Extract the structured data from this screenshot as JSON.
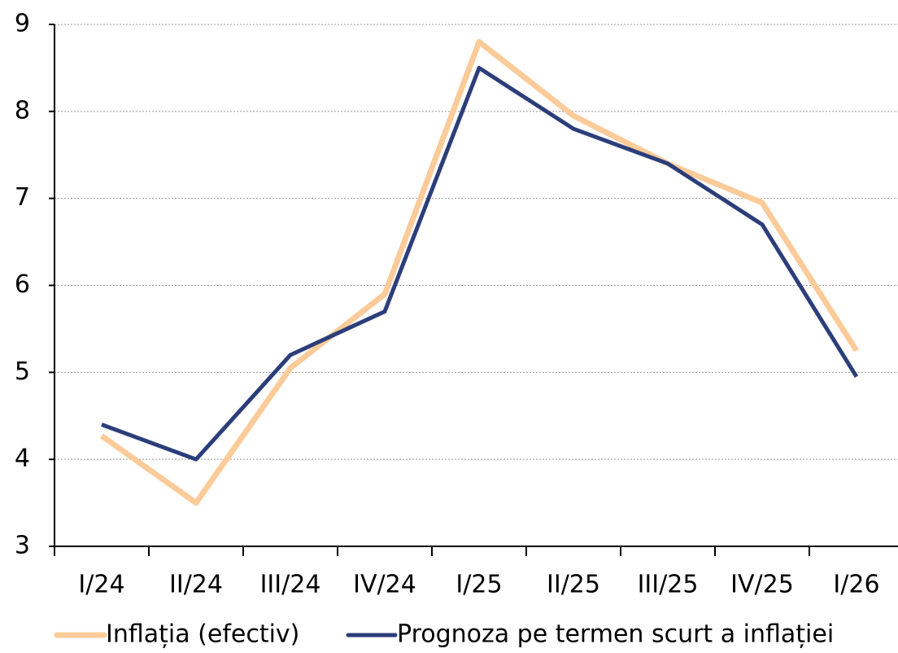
{
  "chart_data": {
    "type": "line",
    "categories": [
      "I/24",
      "II/24",
      "III/24",
      "IV/24",
      "I/25",
      "II/25",
      "III/25",
      "IV/25",
      "I/26"
    ],
    "series": [
      {
        "name": "Inflația (efectiv)",
        "color": "#fbcb9a",
        "values": [
          4.27,
          3.5,
          5.05,
          5.9,
          8.8,
          7.95,
          7.4,
          6.95,
          5.25
        ]
      },
      {
        "name": "Prognoza pe termen scurt a inflației",
        "color": "#2c3e7a",
        "values": [
          4.4,
          4.0,
          5.2,
          5.7,
          8.5,
          7.8,
          7.4,
          6.7,
          4.95
        ]
      }
    ],
    "ylim": [
      3,
      9
    ],
    "yticks": [
      3,
      4,
      5,
      6,
      7,
      8,
      9
    ],
    "grid": true,
    "legend": "bottom"
  }
}
